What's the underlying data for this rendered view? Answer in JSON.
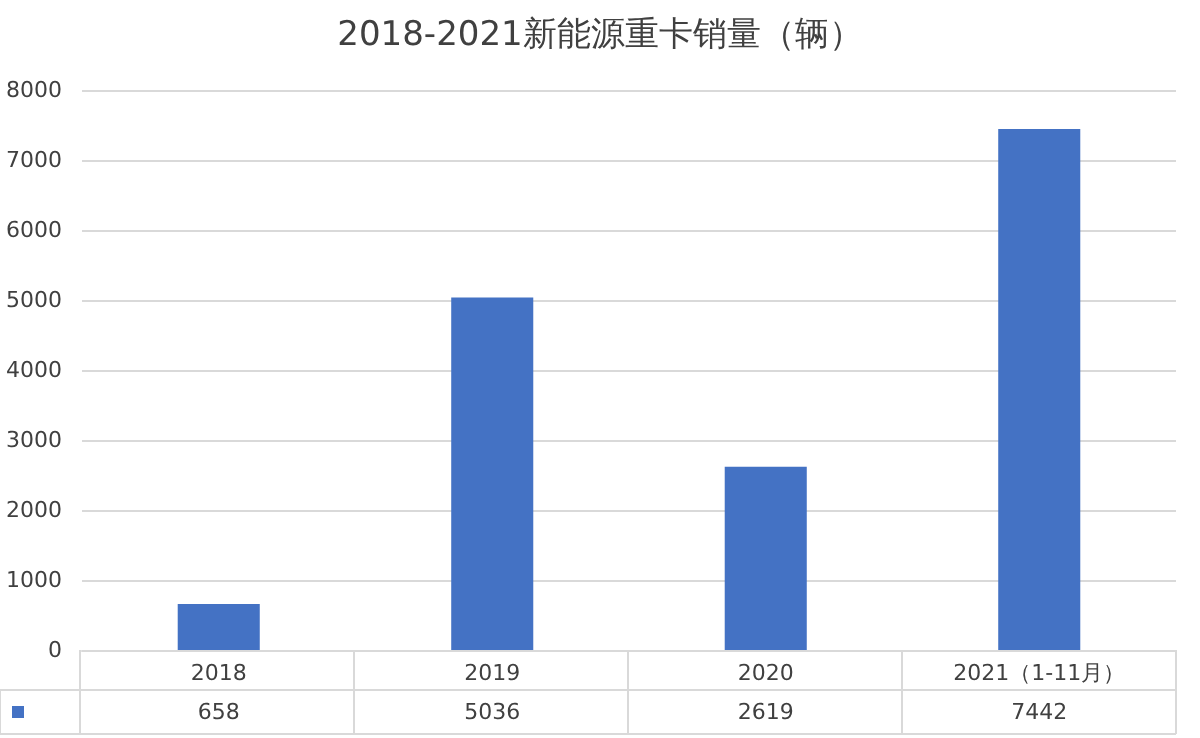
{
  "chart_data": {
    "type": "bar",
    "title": "2018-2021新能源重卡销量（辆）",
    "categories": [
      "2018",
      "2019",
      "2020",
      "2021（1-11月）"
    ],
    "series": [
      {
        "color": "#4472c4",
        "values": [
          658,
          5036,
          2619,
          7442
        ]
      }
    ],
    "ylim": [
      0,
      8000
    ],
    "yticks": [
      0,
      1000,
      2000,
      3000,
      4000,
      5000,
      6000,
      7000,
      8000
    ],
    "grid": "y",
    "data_labels": true
  }
}
